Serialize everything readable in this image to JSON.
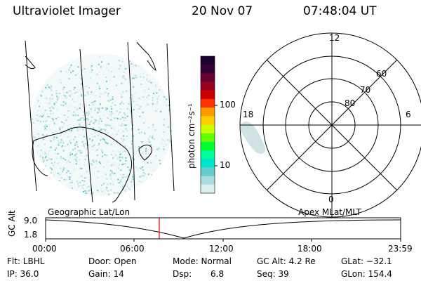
{
  "header": {
    "instrument": "Ultraviolet Imager",
    "date": "20 Nov 07",
    "time": "07:48:04 UT"
  },
  "colorbar": {
    "unit_label": "photon cm⁻²s⁻¹",
    "ticks": [
      "100",
      "10"
    ],
    "colors": [
      "#1a0033",
      "#330033",
      "#660033",
      "#99001a",
      "#cc0000",
      "#ff3300",
      "#ff9900",
      "#ffcc00",
      "#ccff00",
      "#66ff00",
      "#00ff33",
      "#00ff99",
      "#00e6cc",
      "#66cccc",
      "#aadddd",
      "#ddeeee"
    ]
  },
  "left_panel": {
    "caption": "Geographic Lat/Lon"
  },
  "polar_plot": {
    "caption": "Apex MLat/MLT",
    "mlt_labels": {
      "top": "12",
      "left": "18",
      "right": "6",
      "bottom": "0"
    },
    "lat_labels": [
      "60",
      "70",
      "80"
    ]
  },
  "timeline": {
    "ylabel": "GC Alt",
    "y_ticks": [
      "9.0",
      "1.8"
    ],
    "x_ticks": [
      "00:00",
      "06:00",
      "12:00",
      "18:00",
      "23:59"
    ],
    "marker_time": "07:48"
  },
  "status": {
    "flt": "Flt: LBHL",
    "ip": "IP: 36.0",
    "door": "Door: Open",
    "gain": "Gain: 14",
    "mode": "Mode: Normal",
    "dsp_label": "Dsp:",
    "dsp_value": "6.8",
    "gc_alt": "GC Alt: 4.2 Re",
    "seq": "Seq: 39",
    "glat": "GLat: −32.1",
    "glon": "GLon: 154.4"
  }
}
